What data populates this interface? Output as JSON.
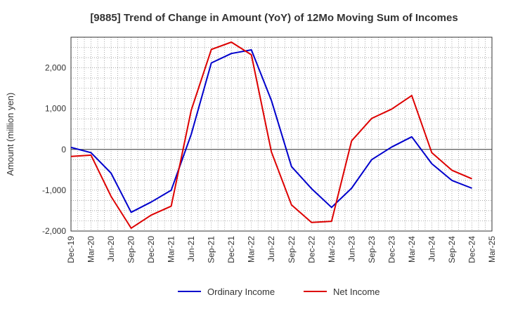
{
  "chart_data": {
    "type": "line",
    "title": "[9885]  Trend of Change in Amount (YoY) of 12Mo Moving Sum of Incomes",
    "xlabel": "",
    "ylabel": "Amount (million yen)",
    "ylim": [
      -2000,
      2750
    ],
    "yticks": [
      -2000,
      -1000,
      0,
      1000,
      2000
    ],
    "ytick_labels": [
      "-2,000",
      "-1,000",
      "0",
      "1,000",
      "2,000"
    ],
    "categories": [
      "Dec-19",
      "Mar-20",
      "Jun-20",
      "Sep-20",
      "Dec-20",
      "Mar-21",
      "Jun-21",
      "Sep-21",
      "Dec-21",
      "Mar-22",
      "Jun-22",
      "Sep-22",
      "Dec-22",
      "Mar-23",
      "Jun-23",
      "Sep-23",
      "Dec-23",
      "Mar-24",
      "Jun-24",
      "Sep-24",
      "Dec-24",
      "Mar-25"
    ],
    "grid": true,
    "legend_position": "bottom",
    "series": [
      {
        "name": "Ordinary Income",
        "color": "#0000cc",
        "values": [
          50,
          -80,
          -580,
          -1540,
          -1290,
          -1000,
          370,
          2120,
          2350,
          2440,
          1200,
          -420,
          -960,
          -1420,
          -950,
          -250,
          60,
          310,
          -350,
          -760,
          -950,
          null
        ]
      },
      {
        "name": "Net Income",
        "color": "#dd0000",
        "values": [
          -170,
          -140,
          -1150,
          -1930,
          -1610,
          -1390,
          960,
          2450,
          2630,
          2320,
          -60,
          -1360,
          -1790,
          -1760,
          210,
          760,
          990,
          1320,
          -80,
          -510,
          -720,
          null
        ]
      }
    ]
  }
}
